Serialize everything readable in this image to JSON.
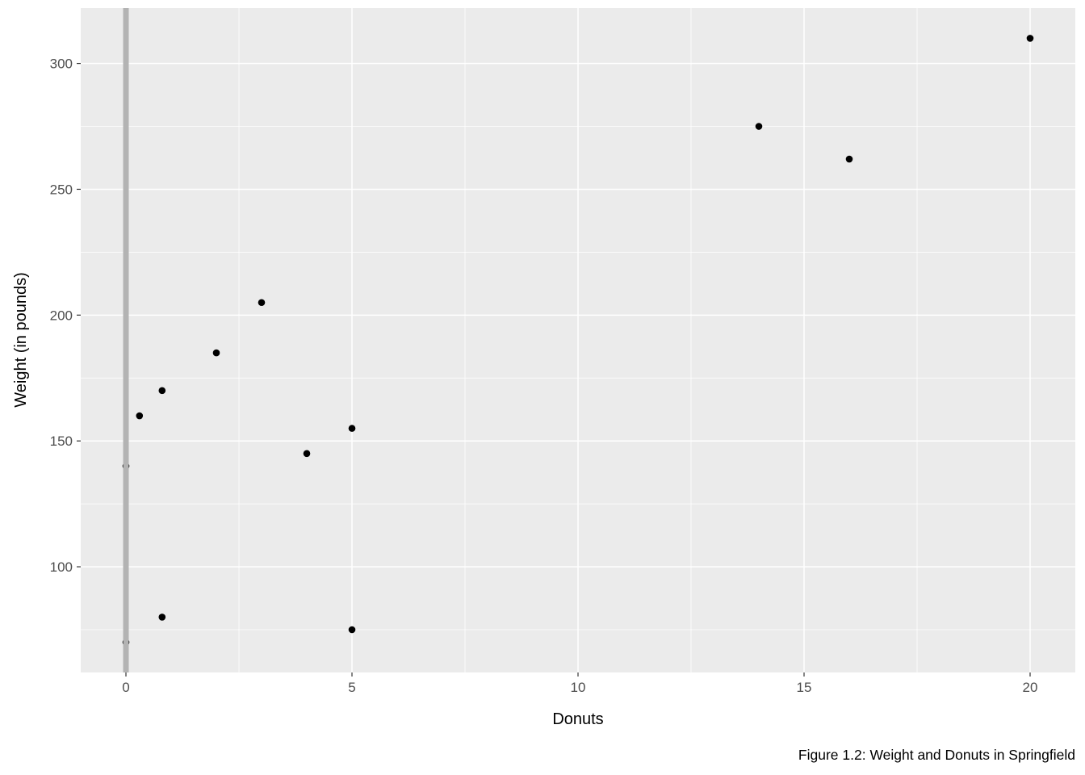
{
  "chart_data": {
    "type": "scatter",
    "title": "",
    "xlabel": "Donuts",
    "ylabel": "Weight (in pounds)",
    "caption": "Figure 1.2: Weight and Donuts in Springfield",
    "xlim": [
      -1,
      21
    ],
    "ylim": [
      58,
      322
    ],
    "x_ticks": [
      0,
      5,
      10,
      15,
      20
    ],
    "y_ticks": [
      100,
      150,
      200,
      250,
      300
    ],
    "x_minor_ticks": [
      2.5,
      7.5,
      12.5,
      17.5
    ],
    "y_minor_ticks": [
      75,
      125,
      175,
      225,
      275
    ],
    "vline_x": 0,
    "points": [
      {
        "x": 0,
        "y": 140
      },
      {
        "x": 0,
        "y": 70
      },
      {
        "x": 0.3,
        "y": 160
      },
      {
        "x": 0.8,
        "y": 170
      },
      {
        "x": 0.8,
        "y": 80
      },
      {
        "x": 2,
        "y": 185
      },
      {
        "x": 3,
        "y": 205
      },
      {
        "x": 4,
        "y": 145
      },
      {
        "x": 5,
        "y": 155
      },
      {
        "x": 5,
        "y": 75
      },
      {
        "x": 14,
        "y": 275
      },
      {
        "x": 16,
        "y": 262
      },
      {
        "x": 20,
        "y": 310
      }
    ],
    "grid": "on",
    "legend": "none",
    "colors": {
      "panel_bg": "#ebebeb",
      "grid_major": "#ffffff",
      "grid_minor": "#ffffff",
      "point": "#000000",
      "vline": "#b3b3b3",
      "tick_mark": "#333333",
      "tick_label": "#4d4d4d",
      "axis_title": "#000000",
      "caption": "#000000",
      "page_bg": "#ffffff"
    }
  }
}
